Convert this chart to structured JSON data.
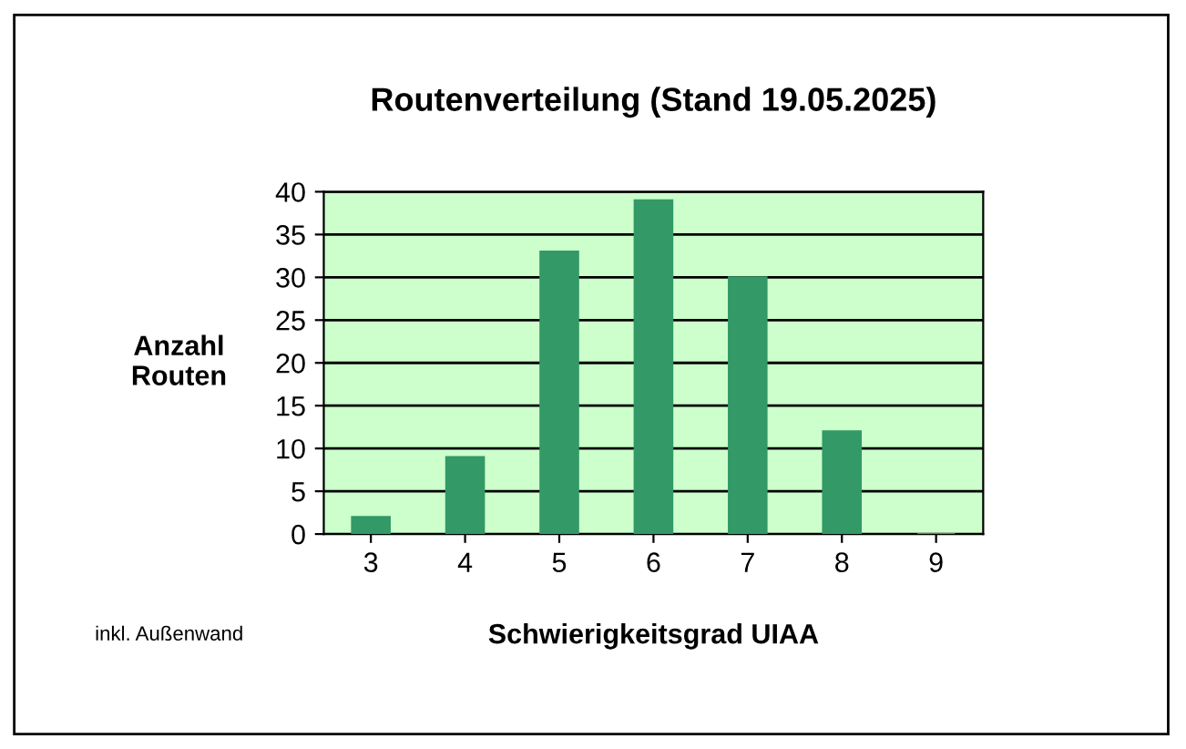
{
  "chart_data": {
    "type": "bar",
    "title": "Routenverteilung (Stand 19.05.2025)",
    "xlabel": "Schwierigkeitsgrad UIAA",
    "ylabel": "Anzahl\nRouten",
    "categories": [
      "3",
      "4",
      "5",
      "6",
      "7",
      "8",
      "9"
    ],
    "values": [
      2,
      9,
      33,
      39,
      30,
      12,
      0
    ],
    "color": "#339966",
    "ylim": [
      0,
      40
    ],
    "yticks": [
      0,
      5,
      10,
      15,
      20,
      25,
      30,
      35,
      40
    ],
    "grid": "y",
    "annotations": [
      "inkl. Außenwand"
    ]
  }
}
